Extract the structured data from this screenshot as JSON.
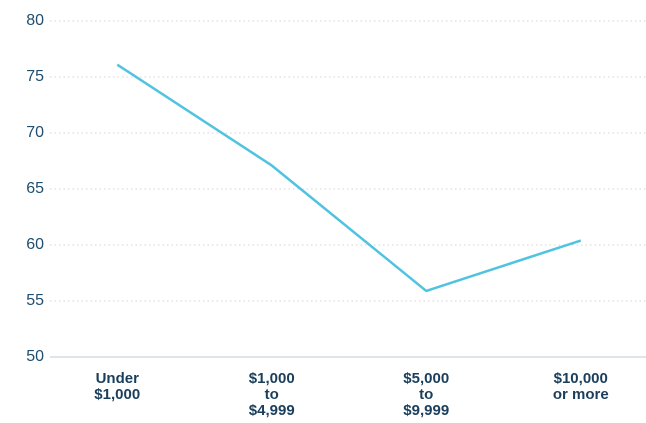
{
  "chart_data": {
    "type": "line",
    "categories": [
      [
        "Under",
        "$1,000"
      ],
      [
        "$1,000",
        "to",
        "$4,999"
      ],
      [
        "$5,000",
        "to",
        "$9,999"
      ],
      [
        "$10,000",
        "or more"
      ]
    ],
    "series": [
      {
        "color": "#4fc3e0",
        "values": [
          76.1,
          67.1,
          55.9,
          60.4
        ]
      }
    ],
    "ylim": [
      50,
      80
    ],
    "yticks": [
      50,
      55,
      60,
      65,
      70,
      75,
      80
    ],
    "grid": true
  }
}
